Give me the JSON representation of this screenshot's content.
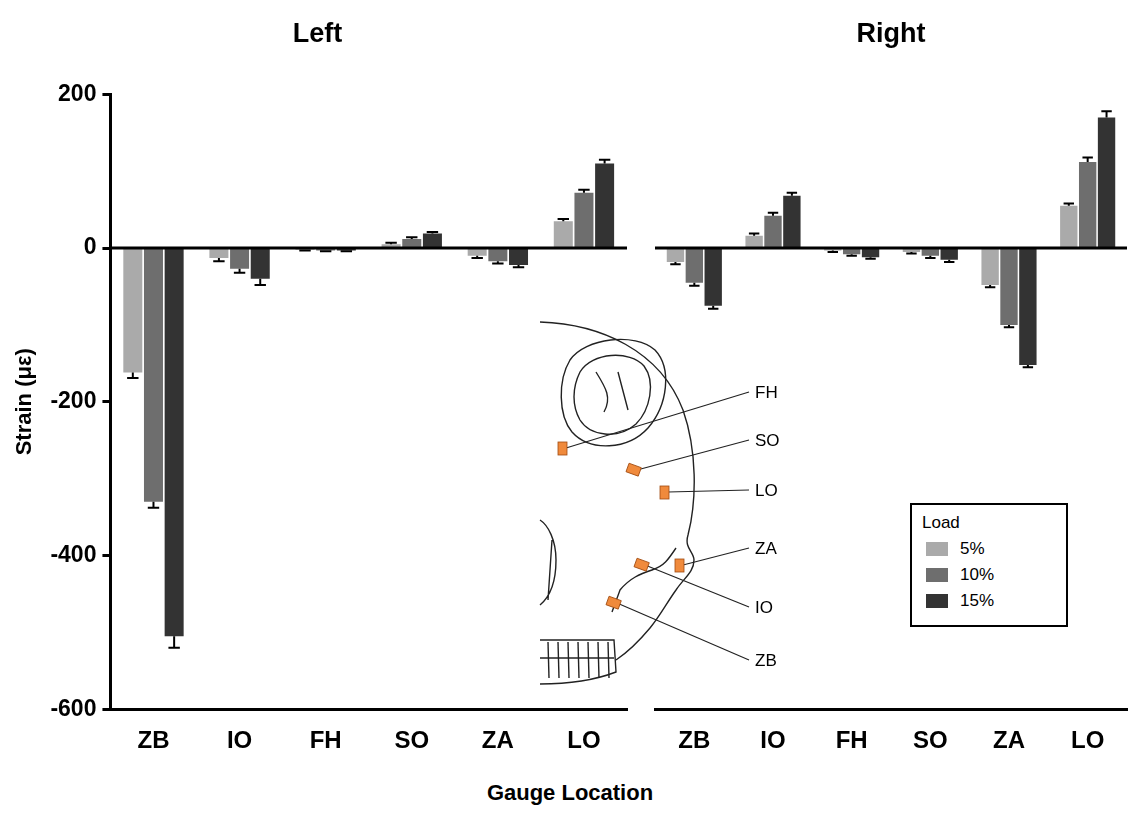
{
  "chart_data": [
    {
      "type": "bar",
      "title": "Left",
      "ylabel": "Strain (με)",
      "categories": [
        "ZB",
        "IO",
        "FH",
        "SO",
        "ZA",
        "LO"
      ],
      "series": [
        {
          "name": "5%",
          "color": "#aaaaaa",
          "values": [
            -162,
            -13,
            -2,
            5,
            -10,
            35
          ],
          "errors": [
            7,
            4,
            1,
            2,
            3,
            3
          ]
        },
        {
          "name": "10%",
          "color": "#6e6e6e",
          "values": [
            -330,
            -27,
            -3,
            12,
            -17,
            72
          ],
          "errors": [
            8,
            5,
            1,
            2,
            3,
            4
          ]
        },
        {
          "name": "15%",
          "color": "#333333",
          "values": [
            -505,
            -40,
            -3,
            19,
            -22,
            110
          ],
          "errors": [
            15,
            8,
            1,
            2,
            3,
            5
          ]
        }
      ],
      "ylim": [
        -600,
        200
      ],
      "yticks": [
        -600,
        -400,
        -200,
        0,
        200
      ],
      "grid": false
    },
    {
      "type": "bar",
      "title": "Right",
      "categories": [
        "ZB",
        "IO",
        "FH",
        "SO",
        "ZA",
        "LO"
      ],
      "series": [
        {
          "name": "5%",
          "color": "#aaaaaa",
          "values": [
            -18,
            16,
            -3,
            -5,
            -48,
            55
          ],
          "errors": [
            3,
            3,
            2,
            2,
            3,
            3
          ]
        },
        {
          "name": "10%",
          "color": "#6e6e6e",
          "values": [
            -45,
            42,
            -8,
            -10,
            -100,
            112
          ],
          "errors": [
            4,
            4,
            2,
            3,
            3,
            6
          ]
        },
        {
          "name": "15%",
          "color": "#333333",
          "values": [
            -75,
            68,
            -12,
            -15,
            -152,
            170
          ],
          "errors": [
            4,
            4,
            2,
            3,
            3,
            8
          ]
        }
      ],
      "ylim": [
        -600,
        200
      ],
      "yticks": [
        -600,
        -400,
        -200,
        0,
        200
      ],
      "grid": false,
      "tick_labels": "x",
      "legend": "right",
      "legend_title": "Load"
    }
  ],
  "xlabel": "Gauge Location",
  "inset": {
    "labels": [
      "FH",
      "SO",
      "LO",
      "ZA",
      "IO",
      "ZB"
    ]
  }
}
